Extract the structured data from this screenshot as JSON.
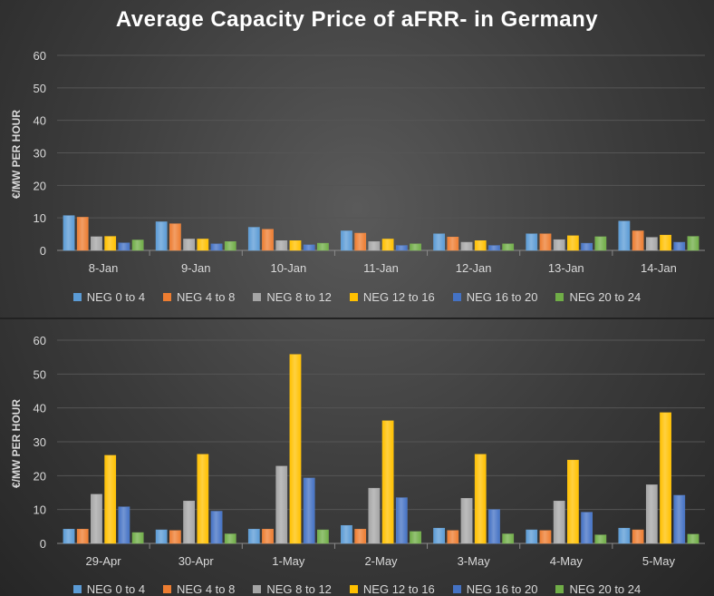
{
  "title": "Average Capacity Price of aFRR- in Germany",
  "colors": [
    "#5b9bd5",
    "#ed7d31",
    "#a5a5a5",
    "#ffc000",
    "#4472c4",
    "#70ad47"
  ],
  "chart_data": [
    {
      "type": "bar",
      "ylabel": "€/MW PER HOUR",
      "ylim": [
        0,
        60
      ],
      "yticks": [
        0,
        10,
        20,
        30,
        40,
        50,
        60
      ],
      "categories": [
        "8-Jan",
        "9-Jan",
        "10-Jan",
        "11-Jan",
        "12-Jan",
        "13-Jan",
        "14-Jan"
      ],
      "legend": [
        "NEG 0 to 4",
        "NEG 4 to 8",
        "NEG 8 to 12",
        "NEG 12 to 16",
        "NEG 16 to 20",
        "NEG 20 to 24"
      ],
      "series": [
        {
          "name": "NEG 0 to 4",
          "values": [
            10.7,
            8.8,
            7.1,
            6.0,
            5.1,
            5.1,
            9.0
          ]
        },
        {
          "name": "NEG 4 to 8",
          "values": [
            10.2,
            8.2,
            6.5,
            5.3,
            4.1,
            5.1,
            6.0
          ]
        },
        {
          "name": "NEG 8 to 12",
          "values": [
            4.2,
            3.5,
            3.0,
            2.7,
            2.5,
            3.3,
            4.0
          ]
        },
        {
          "name": "NEG 12 to 16",
          "values": [
            4.3,
            3.5,
            3.0,
            3.5,
            3.0,
            4.5,
            4.7
          ]
        },
        {
          "name": "NEG 16 to 20",
          "values": [
            2.3,
            2.0,
            1.7,
            1.5,
            1.5,
            2.2,
            2.5
          ]
        },
        {
          "name": "NEG 20 to 24",
          "values": [
            3.2,
            2.7,
            2.2,
            2.0,
            2.0,
            4.2,
            4.3
          ]
        }
      ]
    },
    {
      "type": "bar",
      "ylabel": "€/MW PER HOUR",
      "ylim": [
        0,
        60
      ],
      "yticks": [
        0,
        10,
        20,
        30,
        40,
        50,
        60
      ],
      "categories": [
        "29-Apr",
        "30-Apr",
        "1-May",
        "2-May",
        "3-May",
        "4-May",
        "5-May"
      ],
      "legend": [
        "NEG 0 to 4",
        "NEG 4 to 8",
        "NEG 8 to 12",
        "NEG 12 to 16",
        "NEG 16 to 20",
        "NEG 20 to 24"
      ],
      "series": [
        {
          "name": "NEG 0 to 4",
          "values": [
            4.2,
            4.0,
            4.2,
            5.3,
            4.5,
            4.0,
            4.5
          ]
        },
        {
          "name": "NEG 4 to 8",
          "values": [
            4.2,
            3.8,
            4.2,
            4.2,
            3.8,
            3.8,
            4.0
          ]
        },
        {
          "name": "NEG 8 to 12",
          "values": [
            14.5,
            12.5,
            22.8,
            16.3,
            13.3,
            12.5,
            17.3
          ]
        },
        {
          "name": "NEG 12 to 16",
          "values": [
            26.0,
            26.3,
            55.8,
            36.2,
            26.3,
            24.6,
            38.6
          ]
        },
        {
          "name": "NEG 16 to 20",
          "values": [
            10.8,
            9.5,
            19.3,
            13.5,
            10.0,
            9.2,
            14.2
          ]
        },
        {
          "name": "NEG 20 to 24",
          "values": [
            3.2,
            2.8,
            4.0,
            3.5,
            2.8,
            2.5,
            2.7
          ]
        }
      ]
    }
  ]
}
